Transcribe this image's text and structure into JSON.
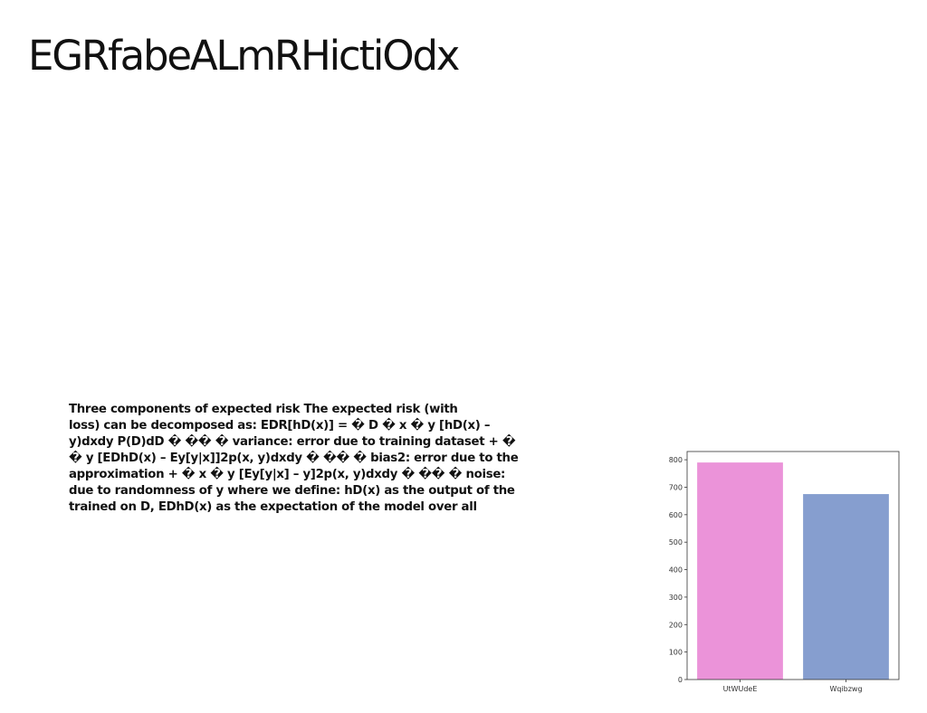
{
  "slide": {
    "title": "EGRfabeALmRHictiOdx",
    "body_lines": [
      "Three components of expected risk The expected risk (with",
      "loss) can be decomposed as: EDR[hD(x)] = � D � x � y [hD(x) –",
      "y)dxdy P(D)dD � �� � variance: error due to training dataset + �",
      "� y [EDhD(x) – Ey[y|x]]2p(x, y)dxdy � �� � bias2: error due to the",
      "approximation + � x � y [Ey[y|x] – y]2p(x, y)dxdy � �� � noise:",
      "due to randomness of y where we define: hD(x) as the output of the",
      "trained on D, EDhD(x) as the expectation of the model over all"
    ]
  },
  "chart_data": {
    "type": "bar",
    "title": "",
    "xlabel": "",
    "ylabel": "",
    "categories": [
      "UtWUdeE",
      "Wqibzwg"
    ],
    "values": [
      790,
      675
    ],
    "colors": [
      "#eb93d9",
      "#869ecf"
    ],
    "ylim": [
      0,
      830
    ],
    "yticks": [
      0,
      100,
      200,
      300,
      400,
      500,
      600,
      700,
      800
    ],
    "grid": false,
    "legend": "none"
  }
}
